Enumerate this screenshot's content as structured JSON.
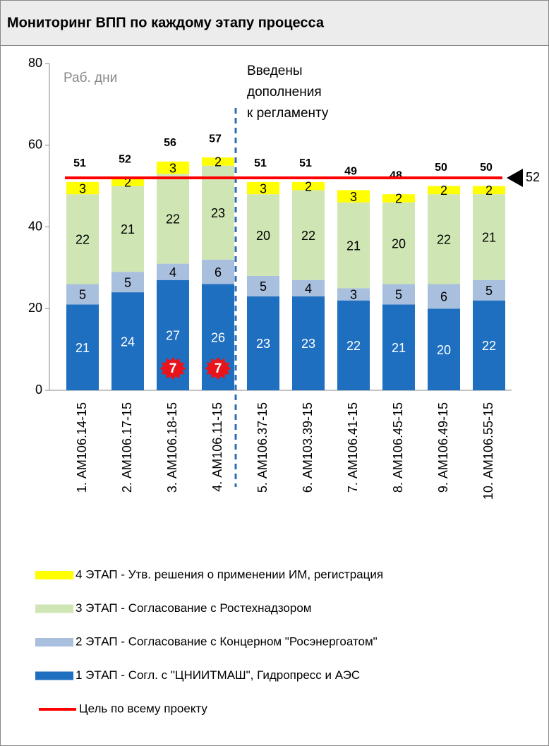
{
  "chart_data": {
    "type": "stacked_bar",
    "title": "Мониторинг ВПП по каждому этапу процесса",
    "y_label": "Раб. дни",
    "annotation": [
      "Введены",
      "дополнения",
      "к регламенту"
    ],
    "categories": [
      "1. АМ106.14-15",
      "2. АМ106.17-15",
      "3. АМ106.18-15",
      "4. АМ106.11-15",
      "5. АМ106.37-15",
      "6. АМ103.39-15",
      "7. АМ106.41-15",
      "8. АМ106.45-15",
      "9. АМ106.49-15",
      "10. АМ106.55-15"
    ],
    "series": [
      {
        "name": "1 ЭТАП - Согл. с \"ЦНИИТМАШ\", Гидропресс и АЭС",
        "color": "#1f6fc0",
        "label_color": "#ffffff",
        "values": [
          21,
          24,
          27,
          26,
          23,
          23,
          22,
          21,
          20,
          22
        ]
      },
      {
        "name": "2 ЭТАП - Согласование с Концерном \"Росэнергоатом\"",
        "color": "#a8bfde",
        "label_color": "#000000",
        "values": [
          5,
          5,
          4,
          6,
          5,
          4,
          3,
          5,
          6,
          5
        ]
      },
      {
        "name": "3 ЭТАП - Согласование с Ростехнадзором",
        "color": "#cfe6b4",
        "label_color": "#000000",
        "values": [
          22,
          21,
          22,
          23,
          20,
          22,
          21,
          20,
          22,
          21
        ]
      },
      {
        "name": "4 ЭТАП - Утв. решения о применении ИМ, регистрация",
        "color": "#ffff00",
        "label_color": "#000000",
        "values": [
          3,
          2,
          3,
          2,
          3,
          2,
          3,
          2,
          2,
          2
        ]
      }
    ],
    "totals": [
      51,
      52,
      56,
      57,
      51,
      51,
      49,
      48,
      50,
      50
    ],
    "target": {
      "name": "Цель по всему проекту",
      "color": "#ff0000",
      "value": 52
    },
    "badges": [
      null,
      null,
      7,
      7,
      null,
      null,
      null,
      null,
      null,
      null
    ],
    "ylim": [
      0,
      80
    ],
    "yticks": [
      0,
      20,
      40,
      60,
      80
    ]
  }
}
